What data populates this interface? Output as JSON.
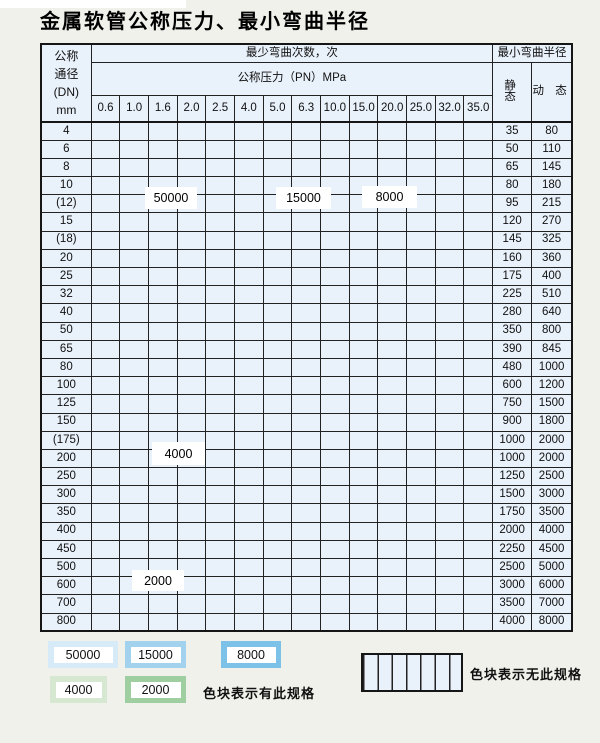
{
  "title": "金属软管公称压力、最小弯曲半径",
  "header": {
    "dn_lines": [
      "公称",
      "通径",
      "(DN)",
      "mm"
    ],
    "bend_cycles": "最少弯曲次数，次",
    "pressure": "公称压力（PN）MPa",
    "radius": "最小弯曲半径",
    "static": "静 态",
    "dynamic": "动 态",
    "pressures": [
      "0.6",
      "1.0",
      "1.6",
      "2.0",
      "2.5",
      "4.0",
      "5.0",
      "6.3",
      "10.0",
      "15.0",
      "20.0",
      "25.0",
      "32.0",
      "35.0"
    ]
  },
  "cell_code_legend": {
    "1": "50000次色块",
    "2": "15000次色块",
    "3": "8000次色块",
    "4": "4000次色块",
    "5": "2000次色块",
    "h": "无此规格(竖条纹)"
  },
  "table": {
    "rows": [
      {
        "dn": "4",
        "cells": "11111222233333",
        "static": "35",
        "dynamic": "80"
      },
      {
        "dn": "6",
        "cells": "111112222333hh",
        "static": "50",
        "dynamic": "110"
      },
      {
        "dn": "8",
        "cells": "111112222333hh",
        "static": "65",
        "dynamic": "145"
      },
      {
        "dn": "10",
        "cells": "111112222333hh",
        "static": "80",
        "dynamic": "180"
      },
      {
        "dn": "(12)",
        "cells": "111112222333hh",
        "static": "95",
        "dynamic": "215"
      },
      {
        "dn": "15",
        "cells": "111112222333hh",
        "static": "120",
        "dynamic": "270"
      },
      {
        "dn": "(18)",
        "cells": "11111222233hhh",
        "static": "145",
        "dynamic": "325"
      },
      {
        "dn": "20",
        "cells": "11111222233hhh",
        "static": "160",
        "dynamic": "360"
      },
      {
        "dn": "25",
        "cells": "1111122223hhhh",
        "static": "175",
        "dynamic": "400"
      },
      {
        "dn": "32",
        "cells": "111112222hhhhh",
        "static": "225",
        "dynamic": "510"
      },
      {
        "dn": "40",
        "cells": "111112222hhhhh",
        "static": "280",
        "dynamic": "640"
      },
      {
        "dn": "50",
        "cells": "11111222hhhhhh",
        "static": "350",
        "dynamic": "800"
      },
      {
        "dn": "65",
        "cells": "11111222hhhhhh",
        "static": "390",
        "dynamic": "845"
      },
      {
        "dn": "80",
        "cells": "1111122hhhhhhh",
        "static": "480",
        "dynamic": "1000"
      },
      {
        "dn": "100",
        "cells": "444444hhhhhhhh",
        "static": "600",
        "dynamic": "1200"
      },
      {
        "dn": "125",
        "cells": "444444hhhhhhhh",
        "static": "750",
        "dynamic": "1500"
      },
      {
        "dn": "150",
        "cells": "444444hhhhhhhh",
        "static": "900",
        "dynamic": "1800"
      },
      {
        "dn": "(175)",
        "cells": "444444hhhhhhhh",
        "static": "1000",
        "dynamic": "2000"
      },
      {
        "dn": "200",
        "cells": "444444hhhhhhhh",
        "static": "1000",
        "dynamic": "2000"
      },
      {
        "dn": "250",
        "cells": "444444hhhhhhhh",
        "static": "1250",
        "dynamic": "2500"
      },
      {
        "dn": "300",
        "cells": "444444hhhhhhhh",
        "static": "1500",
        "dynamic": "3000"
      },
      {
        "dn": "350",
        "cells": "55555hhhhhhhhh",
        "static": "1750",
        "dynamic": "3500"
      },
      {
        "dn": "400",
        "cells": "55555hhhhhhhhh",
        "static": "2000",
        "dynamic": "4000"
      },
      {
        "dn": "450",
        "cells": "55555hhhhhhhhh",
        "static": "2250",
        "dynamic": "4500"
      },
      {
        "dn": "500",
        "cells": "55555hhhhhhhhh",
        "static": "2500",
        "dynamic": "5000"
      },
      {
        "dn": "600",
        "cells": "5555hhhhhhhhhh",
        "static": "3000",
        "dynamic": "6000"
      },
      {
        "dn": "700",
        "cells": "555hhhhhhhhhhh",
        "static": "3500",
        "dynamic": "7000"
      },
      {
        "dn": "800",
        "cells": "555hhhhhhhhhhh",
        "static": "4000",
        "dynamic": "8000"
      }
    ]
  },
  "overlays": {
    "o50000": "50000",
    "o15000": "15000",
    "o8000": "8000",
    "o4000": "4000",
    "o2000": "2000"
  },
  "legend": {
    "i50000": {
      "label": "50000"
    },
    "i15000": {
      "label": "15000"
    },
    "i8000": {
      "label": "8000"
    },
    "i4000": {
      "label": "4000"
    },
    "i2000": {
      "label": "2000"
    },
    "has_spec": "色块表示有此规格",
    "no_spec": "色块表示无此规格"
  },
  "colors": {
    "cycles_50000": "#d7eaf7",
    "cycles_15000": "#a3d2ee",
    "cycles_8000": "#7bc1e8",
    "cycles_4000": "#d6e8d2",
    "cycles_2000": "#9fcfa0",
    "hatch_fill": "#e9f1fa",
    "header_fill": "#dfebf7",
    "label_fill": "#e9f1fa",
    "grid": "#222222",
    "page_bg": "#f1f1eb"
  }
}
